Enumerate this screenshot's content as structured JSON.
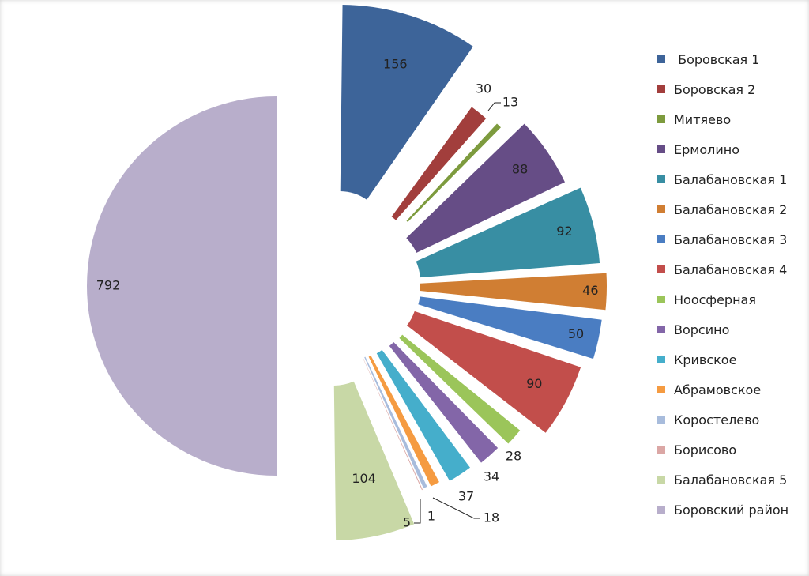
{
  "chart_data": {
    "type": "pie",
    "title": "",
    "legend_position": "right",
    "slices": [
      {
        "label": "Боровская 1",
        "legend_text": " Боровская 1",
        "value": 156,
        "color": "#3D6499"
      },
      {
        "label": "Боровская 2",
        "legend_text": "Боровская 2",
        "value": 30,
        "color": "#A23E3C"
      },
      {
        "label": "Митяево",
        "legend_text": "Митяево",
        "value": 13,
        "color": "#7D9B3E"
      },
      {
        "label": "Ермолино",
        "legend_text": "Ермолино",
        "value": 88,
        "color": "#664D86"
      },
      {
        "label": "Балабановская 1",
        "legend_text": "Балабановская 1",
        "value": 92,
        "color": "#388EA3"
      },
      {
        "label": "Балабановская 2",
        "legend_text": "Балабановская 2",
        "value": 46,
        "color": "#D07E33"
      },
      {
        "label": "Балабановская 3",
        "legend_text": "Балабановская 3",
        "value": 50,
        "color": "#4A7DC2"
      },
      {
        "label": "Балабановская 4",
        "legend_text": "Балабановская 4",
        "value": 90,
        "color": "#C24E4B"
      },
      {
        "label": "Ноосферная",
        "legend_text": "Ноосферная",
        "value": 28,
        "color": "#9BC55A"
      },
      {
        "label": "Ворсино",
        "legend_text": "Ворсино",
        "value": 34,
        "color": "#8366A8"
      },
      {
        "label": "Кривское",
        "legend_text": "Кривское",
        "value": 37,
        "color": "#45AECB"
      },
      {
        "label": "Абрамовское",
        "legend_text": "Абрамовское",
        "value": 18,
        "color": "#F59B41"
      },
      {
        "label": "Коростелево",
        "legend_text": "Коростелево",
        "value": 1,
        "color": "#A8BCDC"
      },
      {
        "label": "Борисово",
        "legend_text": "Борисово",
        "value": 5,
        "color": "#DBA7A5"
      },
      {
        "label": "Балабановская 5",
        "legend_text": "Балабановская 5",
        "value": 104,
        "color": "#C8D8A6"
      },
      {
        "label": "Боровский район",
        "legend_text": "Боровский район",
        "value": 792,
        "color": "#B8AECB"
      }
    ]
  }
}
